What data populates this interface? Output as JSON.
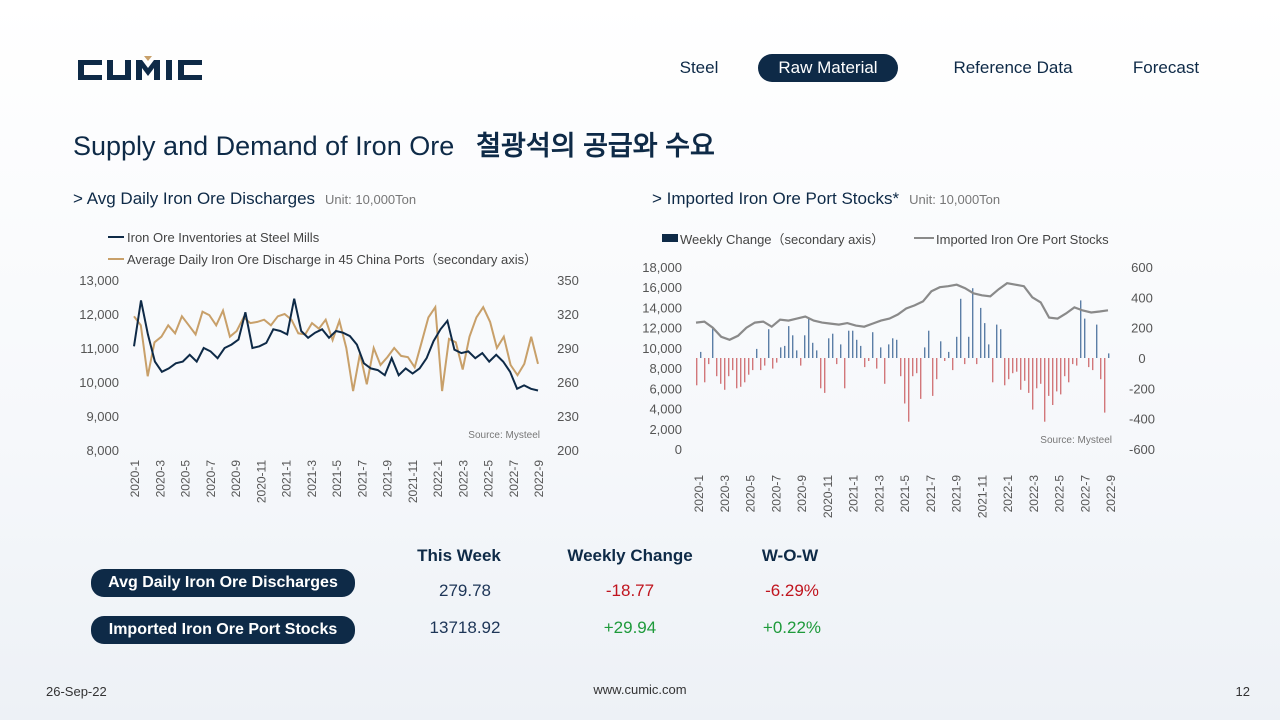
{
  "brand": {
    "logo_text": "CUMIC",
    "colors": {
      "navy": "#0e2a47",
      "gold": "#c8a06a",
      "bar_pos": "#5b7ea6",
      "bar_neg": "#d2777a",
      "gray_line": "#8a8a8a",
      "neg": "#c0141e",
      "pos": "#1e9a3b"
    }
  },
  "nav": [
    {
      "label": "Steel",
      "active": false
    },
    {
      "label": "Raw Material",
      "active": true
    },
    {
      "label": "Reference Data",
      "active": false
    },
    {
      "label": "Forecast",
      "active": false
    }
  ],
  "title": {
    "en": "Supply and Demand of Iron Ore",
    "ko": "철광석의 공급와 수요"
  },
  "left": {
    "heading": "> Avg Daily Iron Ore Discharges",
    "unit": "Unit: 10,000Ton"
  },
  "right": {
    "heading": "> Imported Iron Ore Port Stocks*",
    "unit": "Unit: 10,000Ton"
  },
  "chart_data": [
    {
      "type": "line",
      "legend": [
        "Iron Ore Inventories at Steel Mills",
        "Average Daily Iron Ore Discharge in 45 China Ports（secondary axis）"
      ],
      "source": "Source: Mysteel",
      "ylim": [
        8000,
        13000
      ],
      "y_ticks": [
        "13,000",
        "12,000",
        "11,000",
        "10,000",
        "9,000",
        "8,000"
      ],
      "y2lim": [
        200,
        350
      ],
      "y2_ticks": [
        "350",
        "320",
        "290",
        "260",
        "230",
        "200"
      ],
      "x_ticks": [
        "2020-1",
        "2020-3",
        "2020-5",
        "2020-7",
        "2020-9",
        "2020-11",
        "2021-1",
        "2021-3",
        "2021-5",
        "2021-7",
        "2021-9",
        "2021-11",
        "2022-1",
        "2022-3",
        "2022-5",
        "2022-7",
        "2022-9"
      ],
      "series": [
        {
          "name": "Iron Ore Inventories at Steel Mills",
          "axis": "primary",
          "values": [
            11050,
            12400,
            11400,
            10600,
            10300,
            10400,
            10550,
            10600,
            10800,
            10600,
            11000,
            10900,
            10700,
            11000,
            11100,
            11250,
            12050,
            11000,
            11050,
            11150,
            11550,
            11500,
            11400,
            12450,
            11500,
            11300,
            11450,
            11550,
            11300,
            11500,
            11450,
            11350,
            11100,
            10550,
            10400,
            10350,
            10200,
            10700,
            10200,
            10400,
            10250,
            10400,
            10700,
            11200,
            11550,
            11800,
            10950,
            10850,
            10900,
            10700,
            10850,
            10600,
            10800,
            10600,
            10300,
            9800,
            9900,
            9800,
            9750
          ]
        },
        {
          "name": "Average Daily Iron Ore Discharge in 45 China Ports（secondary axis）",
          "axis": "secondary",
          "values": [
            318,
            310,
            265,
            295,
            300,
            310,
            303,
            318,
            310,
            302,
            322,
            319,
            310,
            323,
            300,
            305,
            317,
            312,
            313,
            315,
            310,
            318,
            320,
            315,
            303,
            302,
            312,
            307,
            315,
            297,
            314,
            290,
            252,
            285,
            258,
            290,
            275,
            282,
            290,
            283,
            282,
            273,
            295,
            317,
            326,
            252,
            298,
            295,
            271,
            300,
            317,
            326,
            313,
            290,
            300,
            275,
            266,
            276,
            300,
            276
          ]
        }
      ]
    },
    {
      "type": "bar",
      "legend": [
        "Weekly Change（secondary axis）",
        "Imported Iron Ore Port Stocks"
      ],
      "source": "Source: Mysteel",
      "ylim": [
        0,
        18000
      ],
      "y_ticks": [
        "18,000",
        "16,000",
        "14,000",
        "12,000",
        "10,000",
        "8,000",
        "6,000",
        "4,000",
        "2,000",
        "0"
      ],
      "y2lim": [
        -600,
        600
      ],
      "y2_ticks": [
        "600",
        "400",
        "200",
        "0",
        "-200",
        "-400",
        "-600"
      ],
      "x_ticks": [
        "2020-1",
        "2020-3",
        "2020-5",
        "2020-7",
        "2020-9",
        "2020-11",
        "2021-1",
        "2021-3",
        "2021-5",
        "2021-7",
        "2021-9",
        "2021-11",
        "2022-1",
        "2022-3",
        "2022-5",
        "2022-7",
        "2022-9"
      ],
      "series": [
        {
          "name": "Weekly Change（secondary axis）",
          "axis": "secondary",
          "values": [
            -180,
            40,
            -160,
            -40,
            200,
            -120,
            -170,
            -210,
            -120,
            -80,
            -200,
            -190,
            -160,
            -110,
            -80,
            60,
            -80,
            -50,
            190,
            -70,
            -30,
            70,
            80,
            210,
            150,
            50,
            -50,
            150,
            260,
            100,
            50,
            -200,
            -230,
            130,
            160,
            -40,
            90,
            -200,
            180,
            180,
            120,
            80,
            -60,
            -20,
            170,
            -70,
            70,
            -170,
            90,
            130,
            120,
            -120,
            -300,
            -420,
            -120,
            -100,
            -270,
            70,
            180,
            -250,
            -140,
            110,
            -20,
            40,
            -80,
            140,
            390,
            -40,
            140,
            460,
            -40,
            330,
            230,
            90,
            -160,
            220,
            190,
            -180,
            -140,
            -100,
            -90,
            -210,
            -150,
            -230,
            -340,
            -200,
            -170,
            -420,
            -250,
            -310,
            -220,
            -240,
            -120,
            -160,
            -40,
            -50,
            380,
            260,
            -60,
            -80,
            220,
            -140,
            -360,
            30
          ]
        },
        {
          "name": "Imported Iron Ore Port Stocks",
          "axis": "primary",
          "values": [
            12500,
            12600,
            12000,
            11100,
            10800,
            11200,
            12000,
            12500,
            12600,
            12100,
            12800,
            12700,
            12900,
            13100,
            12700,
            12500,
            12400,
            12300,
            12450,
            12200,
            12100,
            12400,
            12700,
            12900,
            13300,
            13900,
            14200,
            14600,
            15600,
            16000,
            16100,
            16250,
            15900,
            15400,
            15200,
            15100,
            15800,
            16400,
            16250,
            16100,
            15000,
            14500,
            13000,
            12900,
            13400,
            14000,
            13700,
            13500,
            13600,
            13718.92
          ]
        }
      ]
    }
  ],
  "table": {
    "headers": [
      "This Week",
      "Weekly Change",
      "W-O-W"
    ],
    "rows": [
      {
        "label": "Avg Daily Iron Ore Discharges",
        "this_week": "279.78",
        "weekly_change": "-18.77",
        "wow": "-6.29%",
        "sign": "neg"
      },
      {
        "label": "Imported Iron Ore Port Stocks",
        "this_week": "13718.92",
        "weekly_change": "+29.94",
        "wow": "+0.22%",
        "sign": "pos"
      }
    ]
  },
  "footer": {
    "date": "26-Sep-22",
    "url": "www.cumic.com",
    "page": "12"
  }
}
